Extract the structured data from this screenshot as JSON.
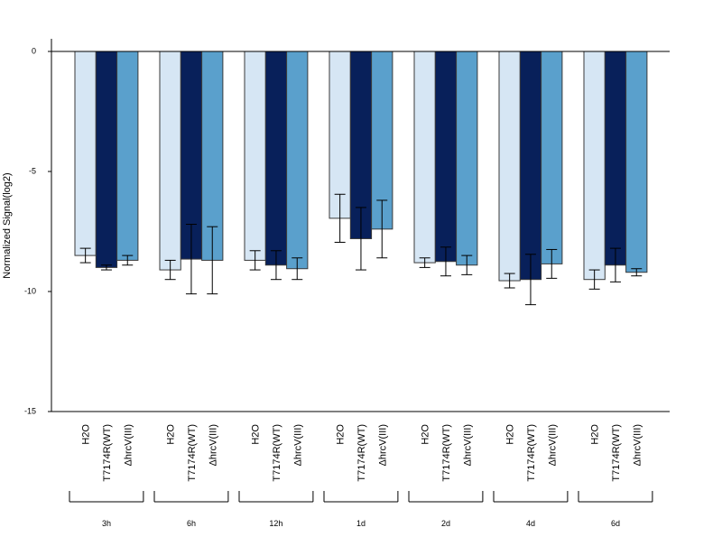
{
  "chart_data": {
    "type": "bar",
    "title": "",
    "xlabel": "",
    "ylabel": "Normalized Signal(log2)",
    "ylim": [
      -15,
      0.5
    ],
    "yticks": [
      0,
      -5,
      -10,
      -15
    ],
    "grid": false,
    "legend": "none",
    "groups": [
      "3h",
      "6h",
      "12h",
      "1d",
      "2d",
      "4d",
      "6d"
    ],
    "series": [
      {
        "name": "H2O",
        "color": "#d6e6f4",
        "values": [
          -8.5,
          -9.1,
          -8.7,
          -6.95,
          -8.8,
          -9.55,
          -9.5
        ],
        "error": [
          0.3,
          0.4,
          0.4,
          1.0,
          0.2,
          0.3,
          0.4
        ]
      },
      {
        "name": "T7174R(WT)",
        "color": "#08205a",
        "values": [
          -9.0,
          -8.65,
          -8.9,
          -7.8,
          -8.75,
          -9.5,
          -8.9
        ],
        "error": [
          0.1,
          1.45,
          0.6,
          1.3,
          0.6,
          1.05,
          0.7
        ]
      },
      {
        "name": "ΔhrcV(III)",
        "color": "#5aa0cc",
        "values": [
          -8.7,
          -8.7,
          -9.05,
          -7.4,
          -8.9,
          -8.85,
          -9.2
        ],
        "error": [
          0.2,
          1.4,
          0.45,
          1.2,
          0.4,
          0.6,
          0.15
        ]
      }
    ]
  }
}
